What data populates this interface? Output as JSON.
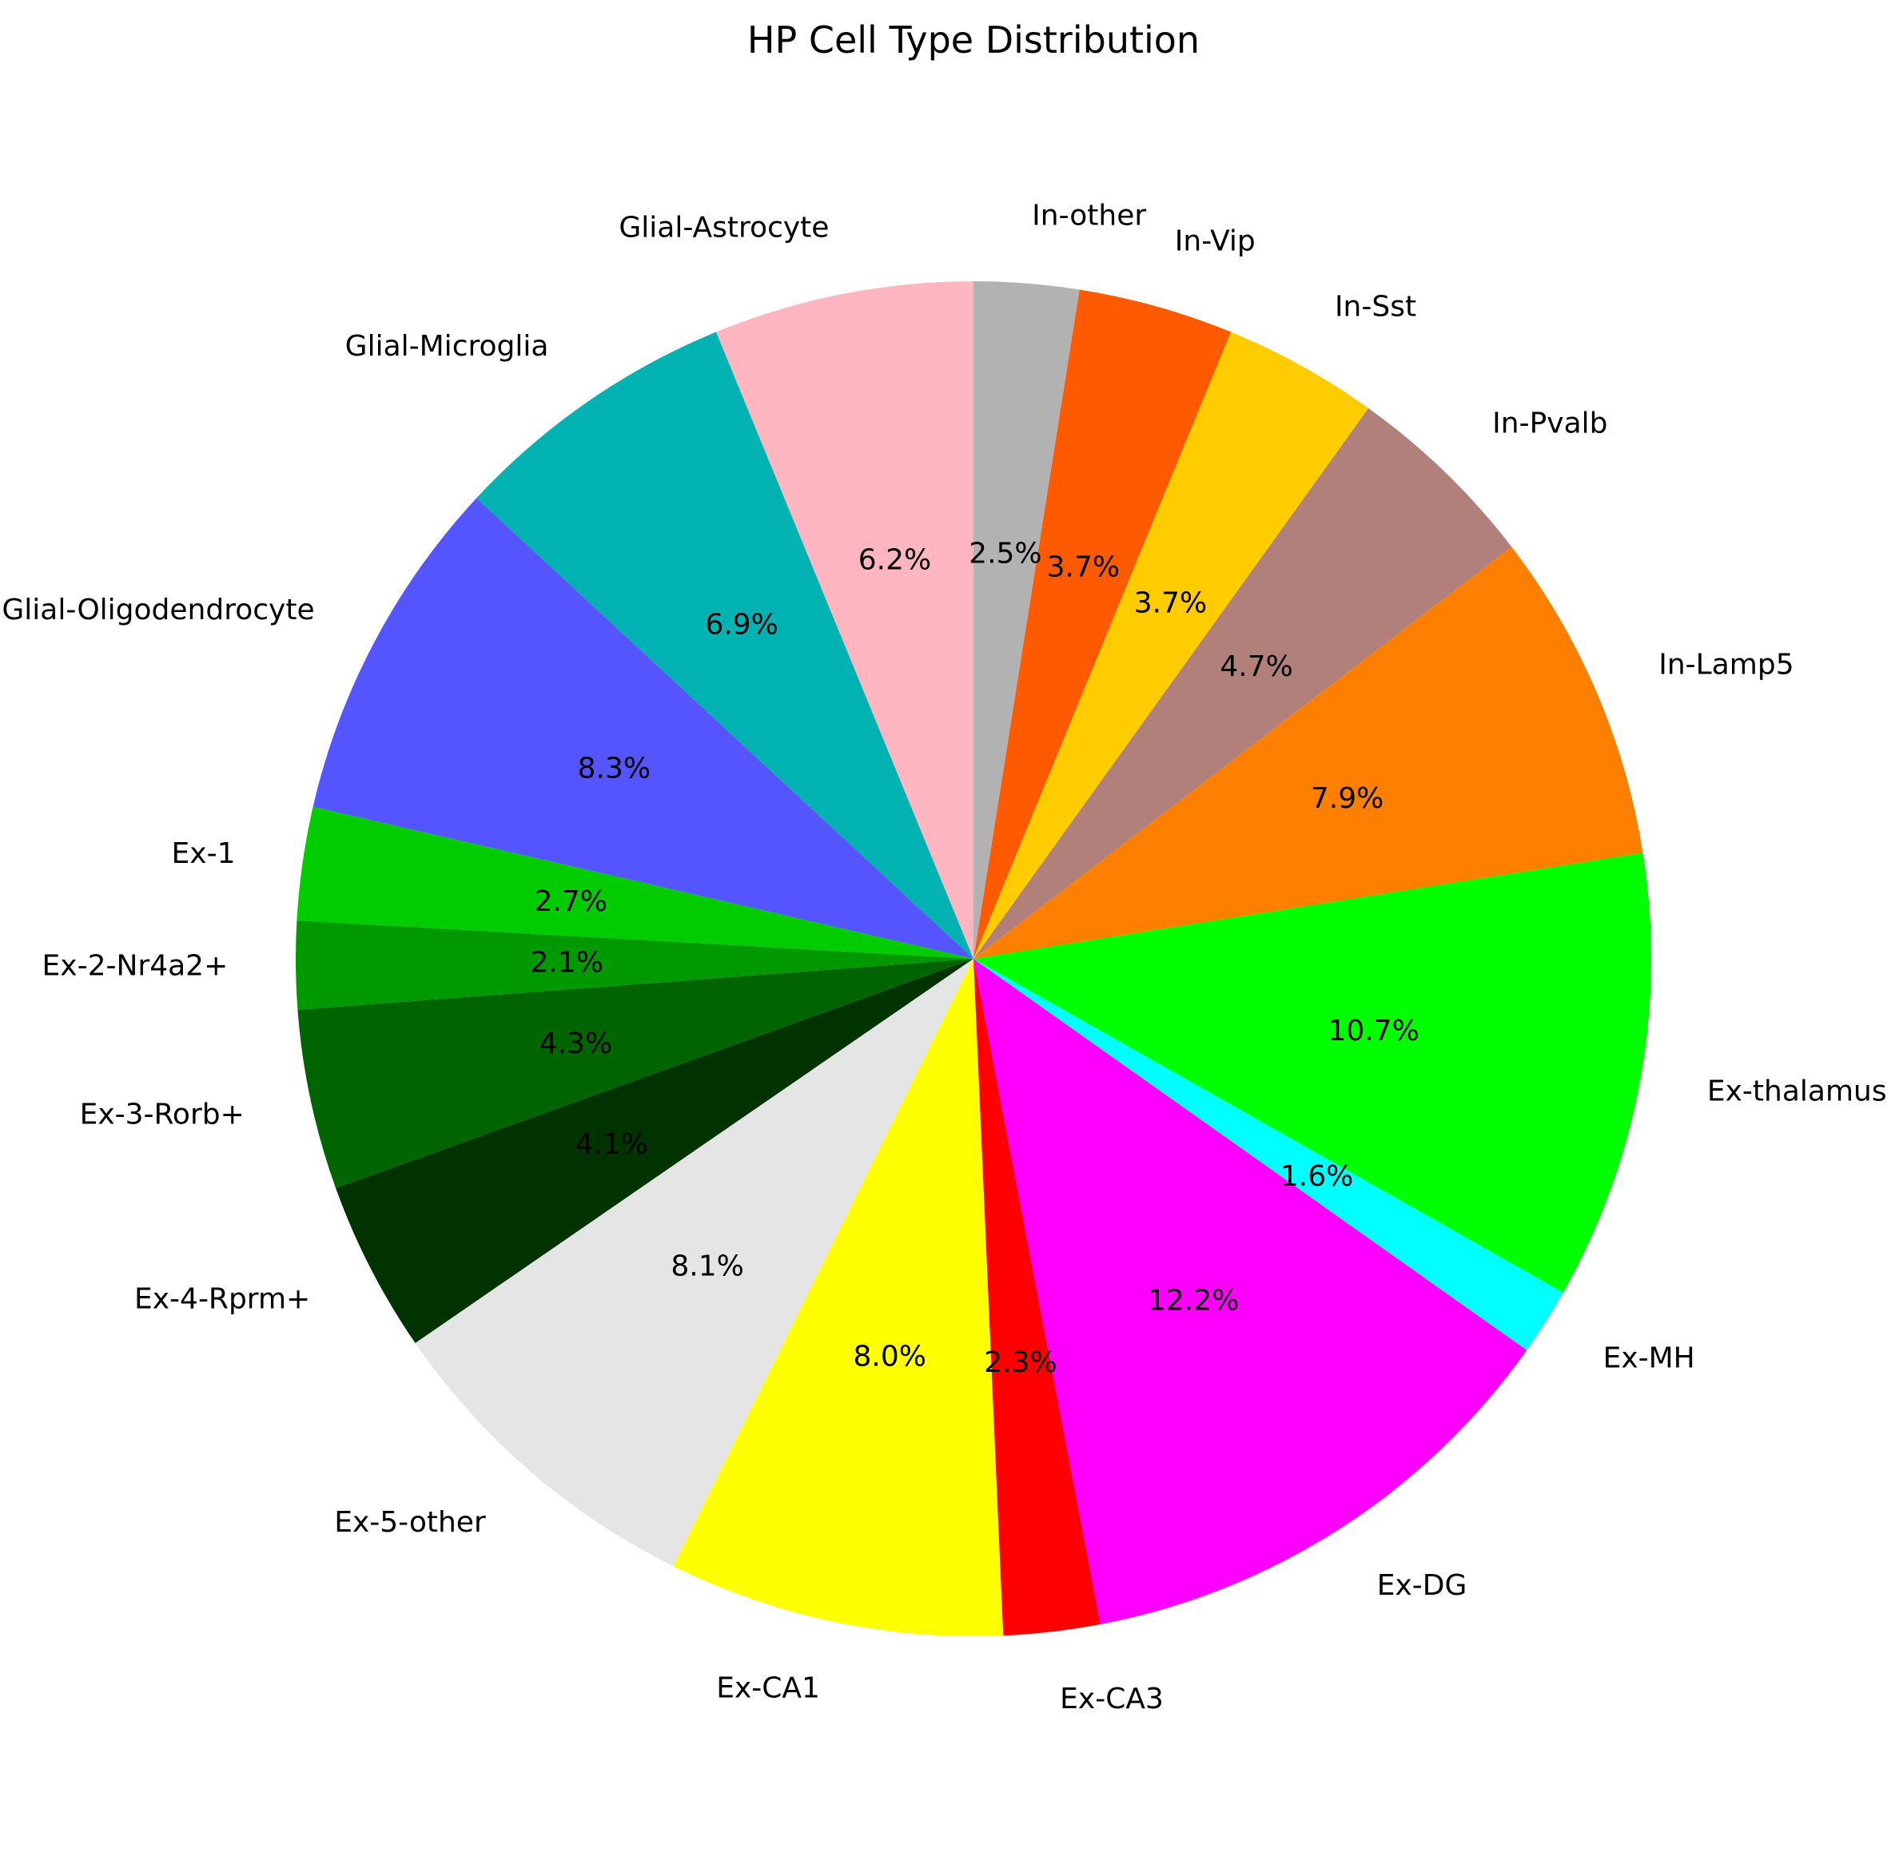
{
  "chart_data": {
    "type": "pie",
    "title": "HP Cell Type Distribution",
    "start_angle_deg": 90,
    "direction": "counterclockwise",
    "slices": [
      {
        "label": "Glial-Astrocyte",
        "value": 6.2,
        "color": "#ffb6c1"
      },
      {
        "label": "Glial-Microglia",
        "value": 6.9,
        "color": "#00b2b2"
      },
      {
        "label": "Glial-Oligodendrocyte",
        "value": 8.3,
        "color": "#5555ff"
      },
      {
        "label": "Ex-1",
        "value": 2.7,
        "color": "#00cc00"
      },
      {
        "label": "Ex-2-Nr4a2+",
        "value": 2.1,
        "color": "#009900"
      },
      {
        "label": "Ex-3-Rorb+",
        "value": 4.3,
        "color": "#006400"
      },
      {
        "label": "Ex-4-Rprm+",
        "value": 4.1,
        "color": "#003300"
      },
      {
        "label": "Ex-5-other",
        "value": 8.1,
        "color": "#e5e5e5"
      },
      {
        "label": "Ex-CA1",
        "value": 8.0,
        "color": "#ffff00"
      },
      {
        "label": "Ex-CA3",
        "value": 2.3,
        "color": "#ff0000"
      },
      {
        "label": "Ex-DG",
        "value": 12.2,
        "color": "#ff00ff"
      },
      {
        "label": "Ex-MH",
        "value": 1.6,
        "color": "#00ffff"
      },
      {
        "label": "Ex-thalamus",
        "value": 10.7,
        "color": "#00ff00"
      },
      {
        "label": "In-Lamp5",
        "value": 7.9,
        "color": "#ff7f00"
      },
      {
        "label": "In-Pvalb",
        "value": 4.7,
        "color": "#b2807b"
      },
      {
        "label": "In-Sst",
        "value": 3.7,
        "color": "#ffcc00"
      },
      {
        "label": "In-Vip",
        "value": 3.7,
        "color": "#ff5a00"
      },
      {
        "label": "In-other",
        "value": 2.5,
        "color": "#b2b2b2"
      }
    ]
  }
}
